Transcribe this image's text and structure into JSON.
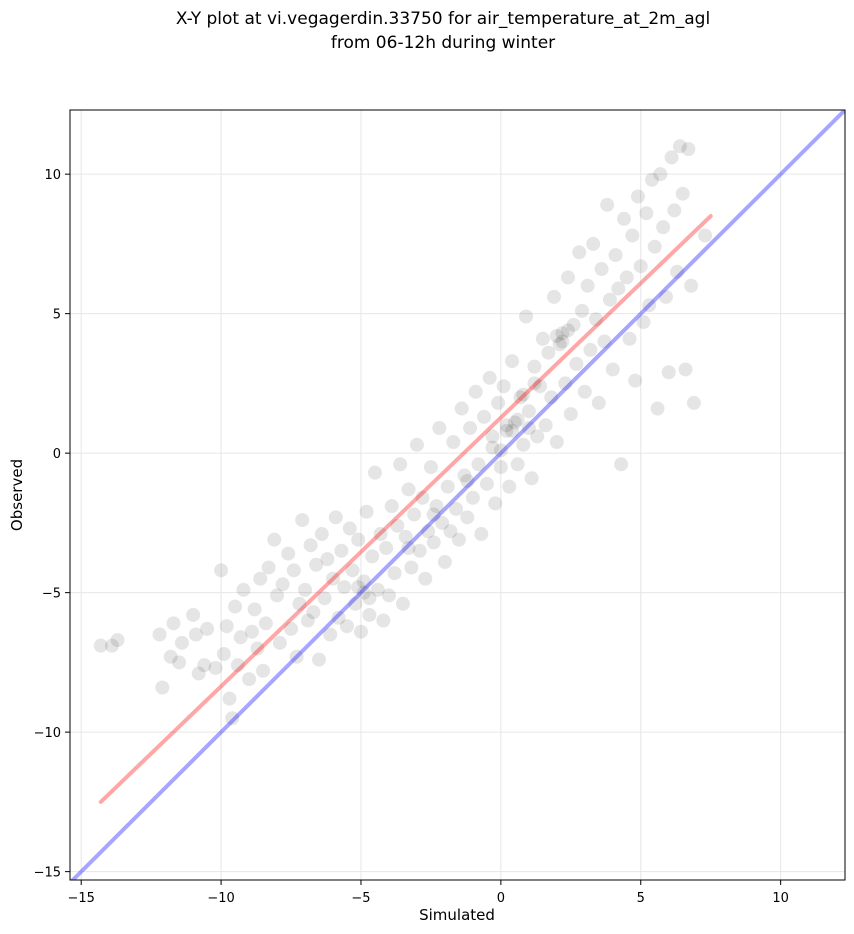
{
  "chart_data": {
    "type": "scatter",
    "title": [
      "X-Y plot at vi.vegagerdin.33750 for air_temperature_at_2m_agl",
      "from 06-12h during winter"
    ],
    "xlabel": "Simulated",
    "ylabel": "Observed",
    "xlim": [
      -15.4,
      12.3
    ],
    "ylim": [
      -15.3,
      12.3
    ],
    "xticks": [
      -15,
      -10,
      -5,
      0,
      5,
      10
    ],
    "xtick_labels": [
      "−15",
      "−10",
      "−5",
      "0",
      "5",
      "10"
    ],
    "yticks": [
      -15,
      -10,
      -5,
      0,
      5,
      10
    ],
    "ytick_labels": [
      "−15",
      "−10",
      "−5",
      "0",
      "5",
      "10"
    ],
    "grid": true,
    "series": [
      {
        "kind": "points",
        "color": "#000000",
        "alpha": 0.1,
        "points": [
          [
            -14.3,
            -6.9
          ],
          [
            -13.9,
            -6.9
          ],
          [
            -13.7,
            -6.7
          ],
          [
            -12.2,
            -6.5
          ],
          [
            -12.1,
            -8.4
          ],
          [
            -11.8,
            -7.3
          ],
          [
            -11.7,
            -6.1
          ],
          [
            -11.5,
            -7.5
          ],
          [
            -11.4,
            -6.8
          ],
          [
            -11.0,
            -5.8
          ],
          [
            -10.9,
            -6.5
          ],
          [
            -10.8,
            -7.9
          ],
          [
            -10.6,
            -7.6
          ],
          [
            -10.5,
            -6.3
          ],
          [
            -10.2,
            -7.7
          ],
          [
            -10.0,
            -4.2
          ],
          [
            -9.9,
            -7.2
          ],
          [
            -9.8,
            -6.2
          ],
          [
            -9.7,
            -8.8
          ],
          [
            -9.6,
            -9.5
          ],
          [
            -9.5,
            -5.5
          ],
          [
            -9.4,
            -7.6
          ],
          [
            -9.3,
            -6.6
          ],
          [
            -9.2,
            -4.9
          ],
          [
            -9.0,
            -8.1
          ],
          [
            -8.9,
            -6.4
          ],
          [
            -8.8,
            -5.6
          ],
          [
            -8.7,
            -7.0
          ],
          [
            -8.6,
            -4.5
          ],
          [
            -8.5,
            -7.8
          ],
          [
            -8.4,
            -6.1
          ],
          [
            -8.3,
            -4.1
          ],
          [
            -8.1,
            -3.1
          ],
          [
            -8.0,
            -5.1
          ],
          [
            -7.9,
            -6.8
          ],
          [
            -7.8,
            -4.7
          ],
          [
            -7.6,
            -3.6
          ],
          [
            -7.5,
            -6.3
          ],
          [
            -7.4,
            -4.2
          ],
          [
            -7.3,
            -7.3
          ],
          [
            -7.2,
            -5.4
          ],
          [
            -7.1,
            -2.4
          ],
          [
            -7.0,
            -4.9
          ],
          [
            -6.9,
            -6.0
          ],
          [
            -6.8,
            -3.3
          ],
          [
            -6.7,
            -5.7
          ],
          [
            -6.6,
            -4.0
          ],
          [
            -6.5,
            -7.4
          ],
          [
            -6.4,
            -2.9
          ],
          [
            -6.3,
            -5.2
          ],
          [
            -6.2,
            -3.8
          ],
          [
            -6.1,
            -6.5
          ],
          [
            -6.0,
            -4.5
          ],
          [
            -5.9,
            -2.3
          ],
          [
            -5.8,
            -5.9
          ],
          [
            -5.7,
            -3.5
          ],
          [
            -5.6,
            -4.8
          ],
          [
            -5.5,
            -6.2
          ],
          [
            -5.4,
            -2.7
          ],
          [
            -5.3,
            -4.2
          ],
          [
            -5.2,
            -5.4
          ],
          [
            -5.1,
            -3.1
          ],
          [
            -5.0,
            -6.4
          ],
          [
            -4.9,
            -4.6
          ],
          [
            -4.8,
            -2.1
          ],
          [
            -4.7,
            -5.8
          ],
          [
            -4.6,
            -3.7
          ],
          [
            -4.5,
            -0.7
          ],
          [
            -4.4,
            -4.9
          ],
          [
            -4.3,
            -2.9
          ],
          [
            -4.2,
            -6.0
          ],
          [
            -4.1,
            -3.4
          ],
          [
            -4.0,
            -5.1
          ],
          [
            -3.9,
            -1.9
          ],
          [
            -3.8,
            -4.3
          ],
          [
            -3.7,
            -2.6
          ],
          [
            -3.6,
            -0.4
          ],
          [
            -3.5,
            -5.4
          ],
          [
            -3.4,
            -3.0
          ],
          [
            -3.3,
            -1.3
          ],
          [
            -3.2,
            -4.1
          ],
          [
            -3.1,
            -2.2
          ],
          [
            -3.0,
            0.3
          ],
          [
            -2.9,
            -3.5
          ],
          [
            -2.8,
            -1.6
          ],
          [
            -2.7,
            -4.5
          ],
          [
            -2.6,
            -2.8
          ],
          [
            -2.5,
            -0.5
          ],
          [
            -2.4,
            -3.2
          ],
          [
            -2.3,
            -1.9
          ],
          [
            -2.2,
            0.9
          ],
          [
            -2.1,
            -2.5
          ],
          [
            -2.0,
            -3.9
          ],
          [
            -1.9,
            -1.2
          ],
          [
            -1.8,
            -2.8
          ],
          [
            -1.7,
            0.4
          ],
          [
            -1.6,
            -2.0
          ],
          [
            -1.5,
            -3.1
          ],
          [
            -1.4,
            1.6
          ],
          [
            -1.3,
            -0.8
          ],
          [
            -1.2,
            -2.3
          ],
          [
            -1.1,
            0.9
          ],
          [
            -1.0,
            -1.6
          ],
          [
            -0.9,
            2.2
          ],
          [
            -0.8,
            -0.4
          ],
          [
            -0.7,
            -2.9
          ],
          [
            -0.6,
            1.3
          ],
          [
            -0.5,
            -1.1
          ],
          [
            -0.4,
            2.7
          ],
          [
            -0.3,
            0.2
          ],
          [
            -0.2,
            -1.8
          ],
          [
            -0.1,
            1.8
          ],
          [
            0.0,
            -0.5
          ],
          [
            0.1,
            2.4
          ],
          [
            0.2,
            0.8
          ],
          [
            0.3,
            -1.2
          ],
          [
            0.4,
            3.3
          ],
          [
            0.5,
            1.1
          ],
          [
            0.6,
            -0.4
          ],
          [
            0.7,
            2.0
          ],
          [
            0.8,
            0.3
          ],
          [
            0.9,
            4.9
          ],
          [
            1.0,
            1.5
          ],
          [
            1.1,
            -0.9
          ],
          [
            1.2,
            3.1
          ],
          [
            1.3,
            0.6
          ],
          [
            1.4,
            2.4
          ],
          [
            1.5,
            4.1
          ],
          [
            1.6,
            1.0
          ],
          [
            1.7,
            3.6
          ],
          [
            1.8,
            2.0
          ],
          [
            1.9,
            5.6
          ],
          [
            2.0,
            0.4
          ],
          [
            2.1,
            3.9
          ],
          [
            2.2,
            4.3
          ],
          [
            2.3,
            2.5
          ],
          [
            2.4,
            6.3
          ],
          [
            2.5,
            1.4
          ],
          [
            2.6,
            4.6
          ],
          [
            2.7,
            3.2
          ],
          [
            2.8,
            7.2
          ],
          [
            2.9,
            5.1
          ],
          [
            3.0,
            2.2
          ],
          [
            3.1,
            6.0
          ],
          [
            3.2,
            3.7
          ],
          [
            3.3,
            7.5
          ],
          [
            3.4,
            4.8
          ],
          [
            3.5,
            1.8
          ],
          [
            3.6,
            6.6
          ],
          [
            3.7,
            4.0
          ],
          [
            3.8,
            8.9
          ],
          [
            3.9,
            5.5
          ],
          [
            4.0,
            3.0
          ],
          [
            4.1,
            7.1
          ],
          [
            4.2,
            5.9
          ],
          [
            4.3,
            -0.4
          ],
          [
            4.4,
            8.4
          ],
          [
            4.5,
            6.3
          ],
          [
            4.6,
            4.1
          ],
          [
            4.7,
            7.8
          ],
          [
            4.8,
            2.6
          ],
          [
            4.9,
            9.2
          ],
          [
            5.0,
            6.7
          ],
          [
            5.1,
            4.7
          ],
          [
            5.2,
            8.6
          ],
          [
            5.3,
            5.3
          ],
          [
            5.4,
            9.8
          ],
          [
            5.5,
            7.4
          ],
          [
            5.6,
            1.6
          ],
          [
            5.7,
            10.0
          ],
          [
            5.8,
            8.1
          ],
          [
            5.9,
            5.6
          ],
          [
            6.0,
            2.9
          ],
          [
            6.1,
            10.6
          ],
          [
            6.2,
            8.7
          ],
          [
            6.3,
            6.5
          ],
          [
            6.4,
            11.0
          ],
          [
            6.5,
            9.3
          ],
          [
            6.6,
            3.0
          ],
          [
            6.7,
            10.9
          ],
          [
            6.8,
            6.0
          ],
          [
            6.9,
            1.8
          ],
          [
            7.3,
            7.8
          ],
          [
            0.2,
            1.0
          ],
          [
            0.4,
            0.8
          ],
          [
            0.6,
            1.2
          ],
          [
            -0.3,
            0.6
          ],
          [
            1.0,
            0.9
          ],
          [
            2.0,
            4.2
          ],
          [
            2.2,
            4.0
          ],
          [
            2.4,
            4.4
          ],
          [
            -4.9,
            -5.0
          ],
          [
            -5.1,
            -4.8
          ],
          [
            -4.7,
            -5.2
          ],
          [
            -3.3,
            -3.4
          ],
          [
            -2.4,
            -2.2
          ],
          [
            -1.2,
            -1.0
          ],
          [
            0.0,
            0.1
          ],
          [
            0.8,
            2.1
          ],
          [
            1.2,
            2.5
          ]
        ]
      },
      {
        "kind": "line",
        "color": "#ff0000",
        "points": [
          [
            -14.3,
            -12.5
          ],
          [
            7.5,
            8.5
          ]
        ]
      },
      {
        "kind": "line",
        "color": "#0000ff",
        "points": [
          [
            -15.4,
            -15.4
          ],
          [
            12.3,
            12.3
          ]
        ]
      }
    ]
  }
}
